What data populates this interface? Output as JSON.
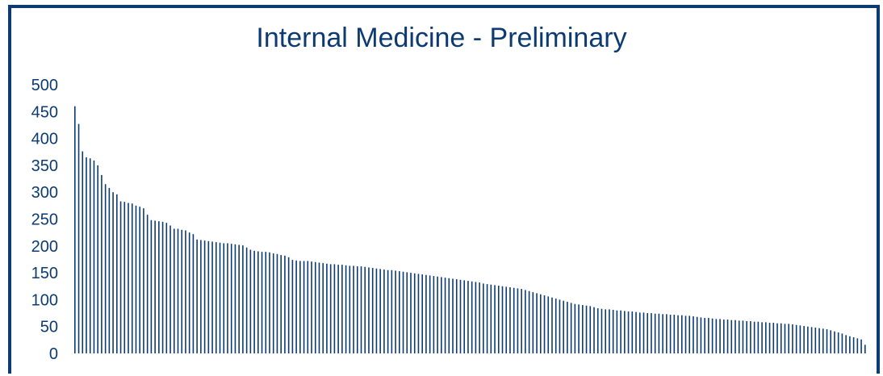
{
  "colors": {
    "accent": "#0c3b73",
    "bar": "#0c3b73"
  },
  "chart_data": {
    "type": "bar",
    "title": "Internal Medicine - Preliminary",
    "xlabel": "",
    "ylabel": "",
    "ylim": [
      0,
      500
    ],
    "yticks": [
      0,
      50,
      100,
      150,
      200,
      250,
      300,
      350,
      400,
      450,
      500
    ],
    "grid": false,
    "values": [
      460,
      427,
      376,
      365,
      363,
      359,
      350,
      332,
      315,
      308,
      300,
      296,
      283,
      282,
      280,
      279,
      275,
      273,
      270,
      258,
      248,
      247,
      246,
      245,
      243,
      238,
      232,
      232,
      230,
      229,
      225,
      222,
      212,
      211,
      210,
      209,
      208,
      207,
      206,
      205,
      205,
      204,
      203,
      202,
      201,
      197,
      193,
      191,
      190,
      189,
      189,
      188,
      186,
      185,
      183,
      182,
      179,
      174,
      173,
      172,
      172,
      172,
      171,
      170,
      169,
      168,
      167,
      166,
      166,
      165,
      165,
      164,
      163,
      163,
      162,
      162,
      161,
      160,
      159,
      158,
      157,
      156,
      155,
      155,
      154,
      153,
      152,
      151,
      150,
      149,
      148,
      147,
      146,
      145,
      144,
      143,
      142,
      141,
      140,
      139,
      138,
      137,
      136,
      135,
      134,
      133,
      132,
      130,
      129,
      128,
      127,
      126,
      125,
      124,
      123,
      122,
      121,
      120,
      118,
      116,
      114,
      112,
      110,
      108,
      106,
      104,
      102,
      100,
      98,
      96,
      94,
      92,
      91,
      90,
      89,
      88,
      86,
      84,
      83,
      82,
      82,
      81,
      80,
      80,
      79,
      78,
      78,
      77,
      76,
      76,
      75,
      75,
      74,
      74,
      73,
      73,
      72,
      72,
      71,
      71,
      70,
      70,
      69,
      68,
      67,
      66,
      66,
      65,
      64,
      64,
      63,
      63,
      62,
      62,
      61,
      61,
      60,
      60,
      59,
      59,
      58,
      58,
      57,
      57,
      56,
      56,
      55,
      55,
      54,
      53,
      52,
      51,
      50,
      49,
      48,
      47,
      46,
      45,
      43,
      41,
      39,
      37,
      34,
      32,
      30,
      28,
      26,
      16
    ]
  }
}
